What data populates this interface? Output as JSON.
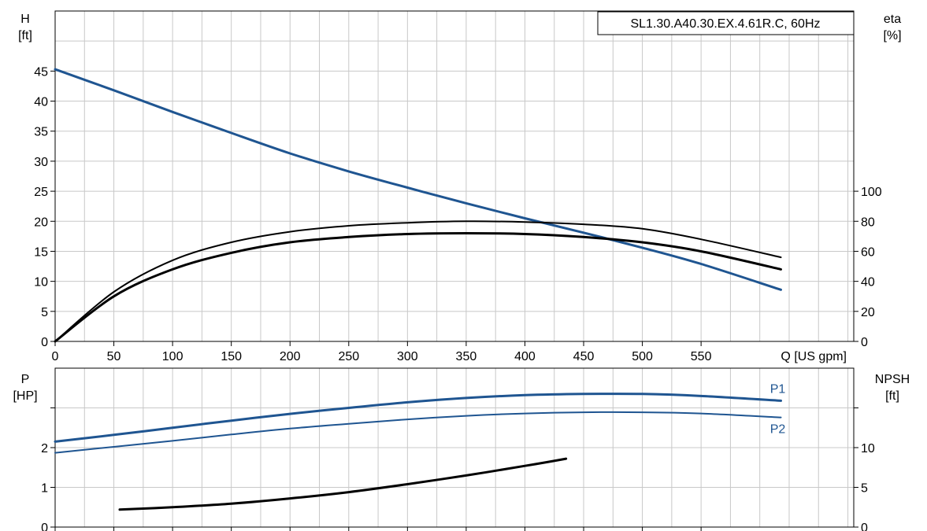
{
  "chart_data": [
    {
      "type": "line",
      "title": "SL1.30.A40.30.EX.4.61R.C, 60Hz",
      "x": {
        "label": "Q [US gpm]",
        "range": [
          0,
          680
        ],
        "ticks": [
          0,
          50,
          100,
          150,
          200,
          250,
          300,
          350,
          400,
          450,
          500,
          550
        ],
        "tick_labels": [
          "0",
          "50",
          "100",
          "150",
          "200",
          "250",
          "300",
          "350",
          "400",
          "450",
          "500",
          "550"
        ]
      },
      "y_left": {
        "label_line1": "H",
        "label_line2": "[ft]",
        "range": [
          0,
          55
        ],
        "ticks": [
          0,
          5,
          10,
          15,
          20,
          25,
          30,
          35,
          40,
          45
        ],
        "tick_labels": [
          "0",
          "5",
          "10",
          "15",
          "20",
          "25",
          "30",
          "35",
          "40",
          "45"
        ]
      },
      "y_right": {
        "label_line1": "eta",
        "label_line2": "[%]",
        "range": [
          0,
          220
        ],
        "ticks": [
          0,
          20,
          40,
          60,
          80,
          100
        ],
        "tick_labels": [
          "0",
          "20",
          "40",
          "60",
          "80",
          "100"
        ]
      },
      "grid": true,
      "series": [
        {
          "axis": "left",
          "color": "#1f5591",
          "x": [
            0,
            50,
            100,
            150,
            200,
            250,
            300,
            350,
            400,
            450,
            500,
            550,
            618
          ],
          "values": [
            45.3,
            41.8,
            38.2,
            34.7,
            31.3,
            28.3,
            25.6,
            23.0,
            20.5,
            18.1,
            15.6,
            12.9,
            8.6
          ]
        },
        {
          "axis": "right",
          "color": "#000000",
          "x": [
            0,
            50,
            100,
            150,
            200,
            250,
            300,
            350,
            400,
            450,
            500,
            550,
            618
          ],
          "values": [
            0,
            30,
            48,
            59,
            66,
            69.5,
            71.5,
            72,
            71.5,
            69.5,
            66,
            60,
            48
          ]
        },
        {
          "axis": "right",
          "color": "#000000",
          "x": [
            0,
            50,
            100,
            150,
            200,
            250,
            300,
            350,
            400,
            450,
            500,
            550,
            618
          ],
          "values": [
            0,
            33,
            54,
            66,
            73,
            77,
            79,
            80,
            79.5,
            78,
            75,
            68,
            56
          ]
        }
      ]
    },
    {
      "type": "line",
      "x": {
        "range": [
          0,
          680
        ],
        "ticks": [
          0,
          50,
          100,
          150,
          200,
          250,
          300,
          350,
          400,
          450,
          500,
          550
        ]
      },
      "y_left": {
        "label_line1": "P",
        "label_line2": "[HP]",
        "range": [
          0,
          4
        ],
        "ticks": [
          0,
          1,
          2,
          3
        ],
        "tick_labels": [
          "0",
          "1",
          "2",
          ""
        ]
      },
      "y_right": {
        "label_line1": "NPSH",
        "label_line2": "[ft]",
        "range": [
          0,
          20
        ],
        "ticks": [
          0,
          5,
          10,
          15
        ],
        "tick_labels": [
          "0",
          "5",
          "10",
          ""
        ]
      },
      "grid": true,
      "series": [
        {
          "name": "P1",
          "axis": "left",
          "color": "#1f5591",
          "x": [
            0,
            50,
            100,
            150,
            200,
            250,
            300,
            350,
            400,
            450,
            500,
            550,
            618
          ],
          "values": [
            2.15,
            2.32,
            2.5,
            2.68,
            2.85,
            3.0,
            3.14,
            3.25,
            3.32,
            3.35,
            3.35,
            3.3,
            3.18
          ]
        },
        {
          "name": "P2",
          "axis": "left",
          "color": "#1f5591",
          "x": [
            0,
            50,
            100,
            150,
            200,
            250,
            300,
            350,
            400,
            450,
            500,
            550,
            618
          ],
          "values": [
            1.87,
            2.02,
            2.17,
            2.33,
            2.48,
            2.6,
            2.71,
            2.8,
            2.86,
            2.89,
            2.89,
            2.86,
            2.76
          ]
        },
        {
          "axis": "right",
          "color": "#000000",
          "x": [
            55,
            100,
            150,
            200,
            250,
            300,
            350,
            400,
            435
          ],
          "values": [
            2.2,
            2.5,
            2.95,
            3.6,
            4.4,
            5.4,
            6.5,
            7.7,
            8.6
          ]
        }
      ]
    }
  ]
}
